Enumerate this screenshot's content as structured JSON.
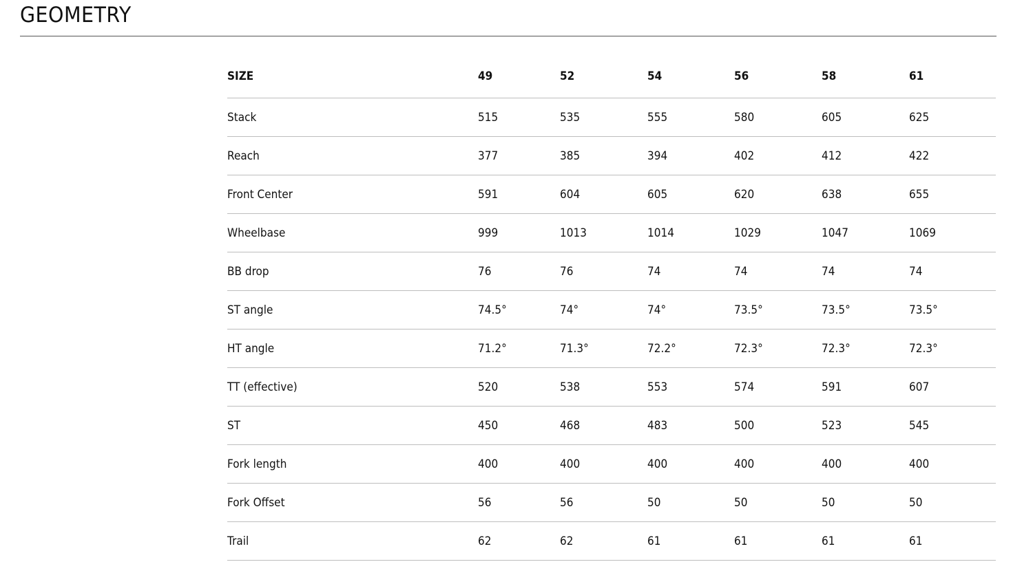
{
  "section": {
    "title": "GEOMETRY"
  },
  "table": {
    "header": [
      "SIZE",
      "49",
      "52",
      "54",
      "56",
      "58",
      "61"
    ],
    "rows": [
      {
        "label": "Stack",
        "values": [
          "515",
          "535",
          "555",
          "580",
          "605",
          "625"
        ]
      },
      {
        "label": "Reach",
        "values": [
          "377",
          "385",
          "394",
          "402",
          "412",
          "422"
        ]
      },
      {
        "label": "Front Center",
        "values": [
          "591",
          "604",
          "605",
          "620",
          "638",
          "655"
        ]
      },
      {
        "label": "Wheelbase",
        "values": [
          "999",
          "1013",
          "1014",
          "1029",
          "1047",
          "1069"
        ]
      },
      {
        "label": "BB drop",
        "values": [
          "76",
          "76",
          "74",
          "74",
          "74",
          "74"
        ]
      },
      {
        "label": "ST angle",
        "values": [
          "74.5°",
          "74°",
          "74°",
          "73.5°",
          "73.5°",
          "73.5°"
        ]
      },
      {
        "label": "HT angle",
        "values": [
          "71.2°",
          "71.3°",
          "72.2°",
          "72.3°",
          "72.3°",
          "72.3°"
        ]
      },
      {
        "label": "TT (effective)",
        "values": [
          "520",
          "538",
          "553",
          "574",
          "591",
          "607"
        ]
      },
      {
        "label": "ST",
        "values": [
          "450",
          "468",
          "483",
          "500",
          "523",
          "545"
        ]
      },
      {
        "label": "Fork length",
        "values": [
          "400",
          "400",
          "400",
          "400",
          "400",
          "400"
        ]
      },
      {
        "label": "Fork Offset",
        "values": [
          "56",
          "56",
          "50",
          "50",
          "50",
          "50"
        ]
      },
      {
        "label": "Trail",
        "values": [
          "62",
          "62",
          "61",
          "61",
          "61",
          "61"
        ]
      }
    ]
  }
}
